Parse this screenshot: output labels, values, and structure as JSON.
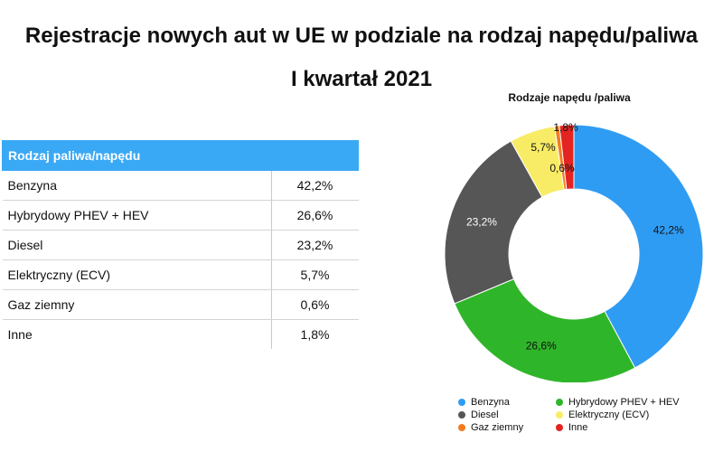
{
  "title": {
    "line1": "Rejestracje nowych aut w UE w podziale na rodzaj napędu/paliwa",
    "line2": "I kwartał 2021"
  },
  "table": {
    "header": "Rodzaj paliwa/napędu",
    "rows": [
      {
        "label": "Benzyna",
        "value": "42,2%"
      },
      {
        "label": "Hybrydowy PHEV + HEV",
        "value": "26,6%"
      },
      {
        "label": "Diesel",
        "value": "23,2%"
      },
      {
        "label": "Elektryczny (ECV)",
        "value": "5,7%"
      },
      {
        "label": "Gaz ziemny",
        "value": "0,6%"
      },
      {
        "label": "Inne",
        "value": "1,8%"
      }
    ]
  },
  "chart_data": {
    "type": "pie",
    "title": "Rodzaje napędu /paliwa",
    "categories": [
      "Benzyna",
      "Hybrydowy PHEV + HEV",
      "Diesel",
      "Elektryczny (ECV)",
      "Gaz ziemny",
      "Inne"
    ],
    "values": [
      42.2,
      26.6,
      23.2,
      5.7,
      0.6,
      1.8
    ],
    "labels": [
      "42,2%",
      "26,6%",
      "23,2%",
      "5,7%",
      "0,6%",
      "1,8%"
    ],
    "colors": [
      "#2f9cf3",
      "#2fb52a",
      "#565656",
      "#f8ec66",
      "#f47a1f",
      "#e42420"
    ],
    "label_colors": [
      "#111111",
      "#111111",
      "#ffffff",
      "#111111",
      "#111111",
      "#111111"
    ],
    "donut": true,
    "legend_position": "bottom"
  }
}
